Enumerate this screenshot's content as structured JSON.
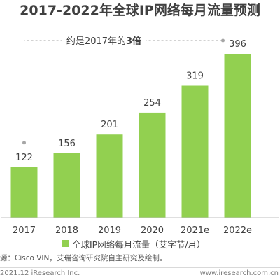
{
  "header": {
    "title": "2017-2022年全球IP网络每月流量预测"
  },
  "callout": {
    "prefix": "约是2017年的",
    "emphasis": "3倍"
  },
  "legend": {
    "label": "全球IP网络每月流量（艾字节/月）"
  },
  "footer": {
    "source": "源：Cisco VIN，艾瑞咨询研究院自主研究及绘制。",
    "copyright": "2021.12 iResearch Inc.",
    "website": "www.iresearch.com.cn"
  },
  "colors": {
    "bar": "#92D050",
    "text": "#404040",
    "axis": "#bfbfbf",
    "callout_line": "#a6a6a6"
  },
  "chart_data": {
    "type": "bar",
    "title": "2017-2022年全球IP网络每月流量预测",
    "categories": [
      "2017",
      "2018",
      "2019",
      "2020",
      "2021e",
      "2022e"
    ],
    "series": [
      {
        "name": "全球IP网络每月流量（艾字节/月）",
        "values": [
          122,
          156,
          201,
          254,
          319,
          396
        ]
      }
    ],
    "data_labels": [
      "122",
      "156",
      "201",
      "254",
      "319",
      "396"
    ],
    "annotation": "约是2017年的3倍",
    "xlabel": "",
    "ylabel": "",
    "ylim": [
      0,
      396
    ],
    "grid": false,
    "legend_position": "bottom"
  }
}
